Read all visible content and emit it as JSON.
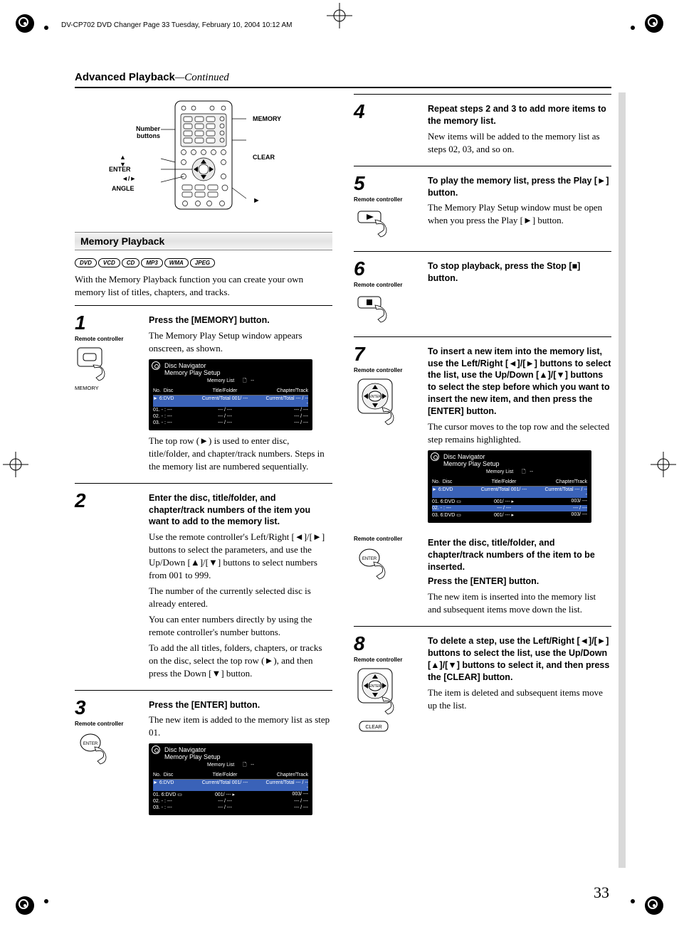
{
  "doc_header": "DV-CP702 DVD Changer  Page 33  Tuesday, February 10, 2004  10:12 AM",
  "section_title": "Advanced Playback",
  "section_title_suffix": "—Continued",
  "remote_labels": {
    "number_buttons": "Number\nbuttons",
    "memory": "MEMORY",
    "clear": "CLEAR",
    "enter": "ENTER",
    "angle": "ANGLE",
    "arrows": "◄/►",
    "updown": "▲\n▼",
    "play": "►"
  },
  "subhead": "Memory Playback",
  "format_badges": [
    "DVD",
    "VCD",
    "CD",
    "MP3",
    "WMA",
    "JPEG"
  ],
  "intro": "With the Memory Playback function you can create your own memory list of titles, chapters, and tracks.",
  "remote_controller": "Remote controller",
  "memory_label": "MEMORY",
  "enter_label": "ENTER",
  "clear_label": "CLEAR",
  "screen": {
    "title": "Disc Navigator",
    "subtitle": "Memory Play Setup",
    "mid": "Memory List",
    "col_no": "No.",
    "col_disc": "Disc",
    "col_title": "Title/Folder",
    "col_chapter": "Chapter/Track",
    "row_hl": {
      "c1": "►   6:DVD",
      "c2": "Current/Total   001/ ---",
      "c3": "Current/Total    --- / ---"
    },
    "rows_a": [
      {
        "c1": "01. - : ---",
        "c2": "--- / ---",
        "c3": "--- / ---"
      },
      {
        "c1": "02. - : ---",
        "c2": "--- / ---",
        "c3": "--- / ---"
      },
      {
        "c1": "03. - : ---",
        "c2": "--- / ---",
        "c3": "--- / ---"
      }
    ],
    "rows_b": [
      {
        "c1": "01. 6:DVD ▭",
        "c2": "001/ ---  ▸",
        "c3": "003/ ---"
      },
      {
        "c1": "02. - : ---",
        "c2": "--- / ---",
        "c3": "--- / ---"
      },
      {
        "c1": "03. - : ---",
        "c2": "--- / ---",
        "c3": "--- / ---"
      }
    ],
    "rows_c": [
      {
        "c1": "01. 6:DVD ▭",
        "c2": "001/ ---  ▸",
        "c3": "003/ ---"
      },
      {
        "c1": "02. - : ---",
        "c2": "--- / ---",
        "c3": "--- / ---",
        "hl": true
      },
      {
        "c1": "03. 6:DVD ▭",
        "c2": "001/ ---  ▸",
        "c3": "003/ ---"
      }
    ]
  },
  "steps_left": [
    {
      "n": "1",
      "lead": "Press the [MEMORY] button.",
      "p": [
        "The Memory Play Setup window appears onscreen, as shown."
      ],
      "screen": "a",
      "after": [
        "The top row (►) is used to enter disc, title/folder, and chapter/track numbers. Steps in the memory list are numbered sequentially."
      ],
      "thumb": "memory"
    },
    {
      "n": "2",
      "lead": "Enter the disc, title/folder, and chapter/track numbers of the item you want to add to the memory list.",
      "p": [
        "Use the remote controller's Left/Right [◄]/[►] buttons to select the parameters, and use the Up/Down [▲]/[▼] buttons to select numbers from 001 to 999.",
        "The number of the currently selected disc is already entered.",
        "You can enter numbers directly by using the remote controller's number buttons.",
        "To add the all titles, folders, chapters, or tracks on the disc, select the top row (►), and then press the Down [▼] button."
      ]
    },
    {
      "n": "3",
      "lead": "Press the [ENTER] button.",
      "p": [
        "The new item is added to the memory list as step 01."
      ],
      "screen": "b",
      "thumb": "enter"
    }
  ],
  "steps_right": [
    {
      "n": "4",
      "lead": "Repeat steps 2 and 3 to add more items to the memory list.",
      "p": [
        "New items will be added to the memory list as steps 02, 03, and so on."
      ]
    },
    {
      "n": "5",
      "lead": "To play the memory list, press the Play [►] button.",
      "p": [
        "The Memory Play Setup window must be open when you press the Play [►] button."
      ],
      "thumb": "play"
    },
    {
      "n": "6",
      "lead": "To stop playback, press the Stop [■] button.",
      "thumb": "stop"
    },
    {
      "n": "7",
      "lead": "To insert a new item into the memory list, use the Left/Right [◄]/[►] buttons to select the list, use the Up/Down [▲]/[▼] buttons to select the step before which you want to insert the new item, and then press the [ENTER] button.",
      "p": [
        "The cursor moves to the top row and the selected step remains highlighted."
      ],
      "screen": "c",
      "thumb": "dpad",
      "second_lead": "Enter the disc, title/folder, and chapter/track numbers of the item to be inserted.",
      "third_lead": "Press the [ENTER] button.",
      "p2": [
        "The new item is inserted into the memory list and subsequent items move down the list."
      ],
      "thumb2": "enter-only"
    },
    {
      "n": "8",
      "lead": "To delete a step, use the Left/Right [◄]/[►] buttons to select the list, use the Up/Down [▲]/[▼] buttons to select it, and then press the [CLEAR] button.",
      "p": [
        "The item is deleted and subsequent items move up the list."
      ],
      "thumb": "dpad-clear"
    }
  ],
  "page_number": "33"
}
